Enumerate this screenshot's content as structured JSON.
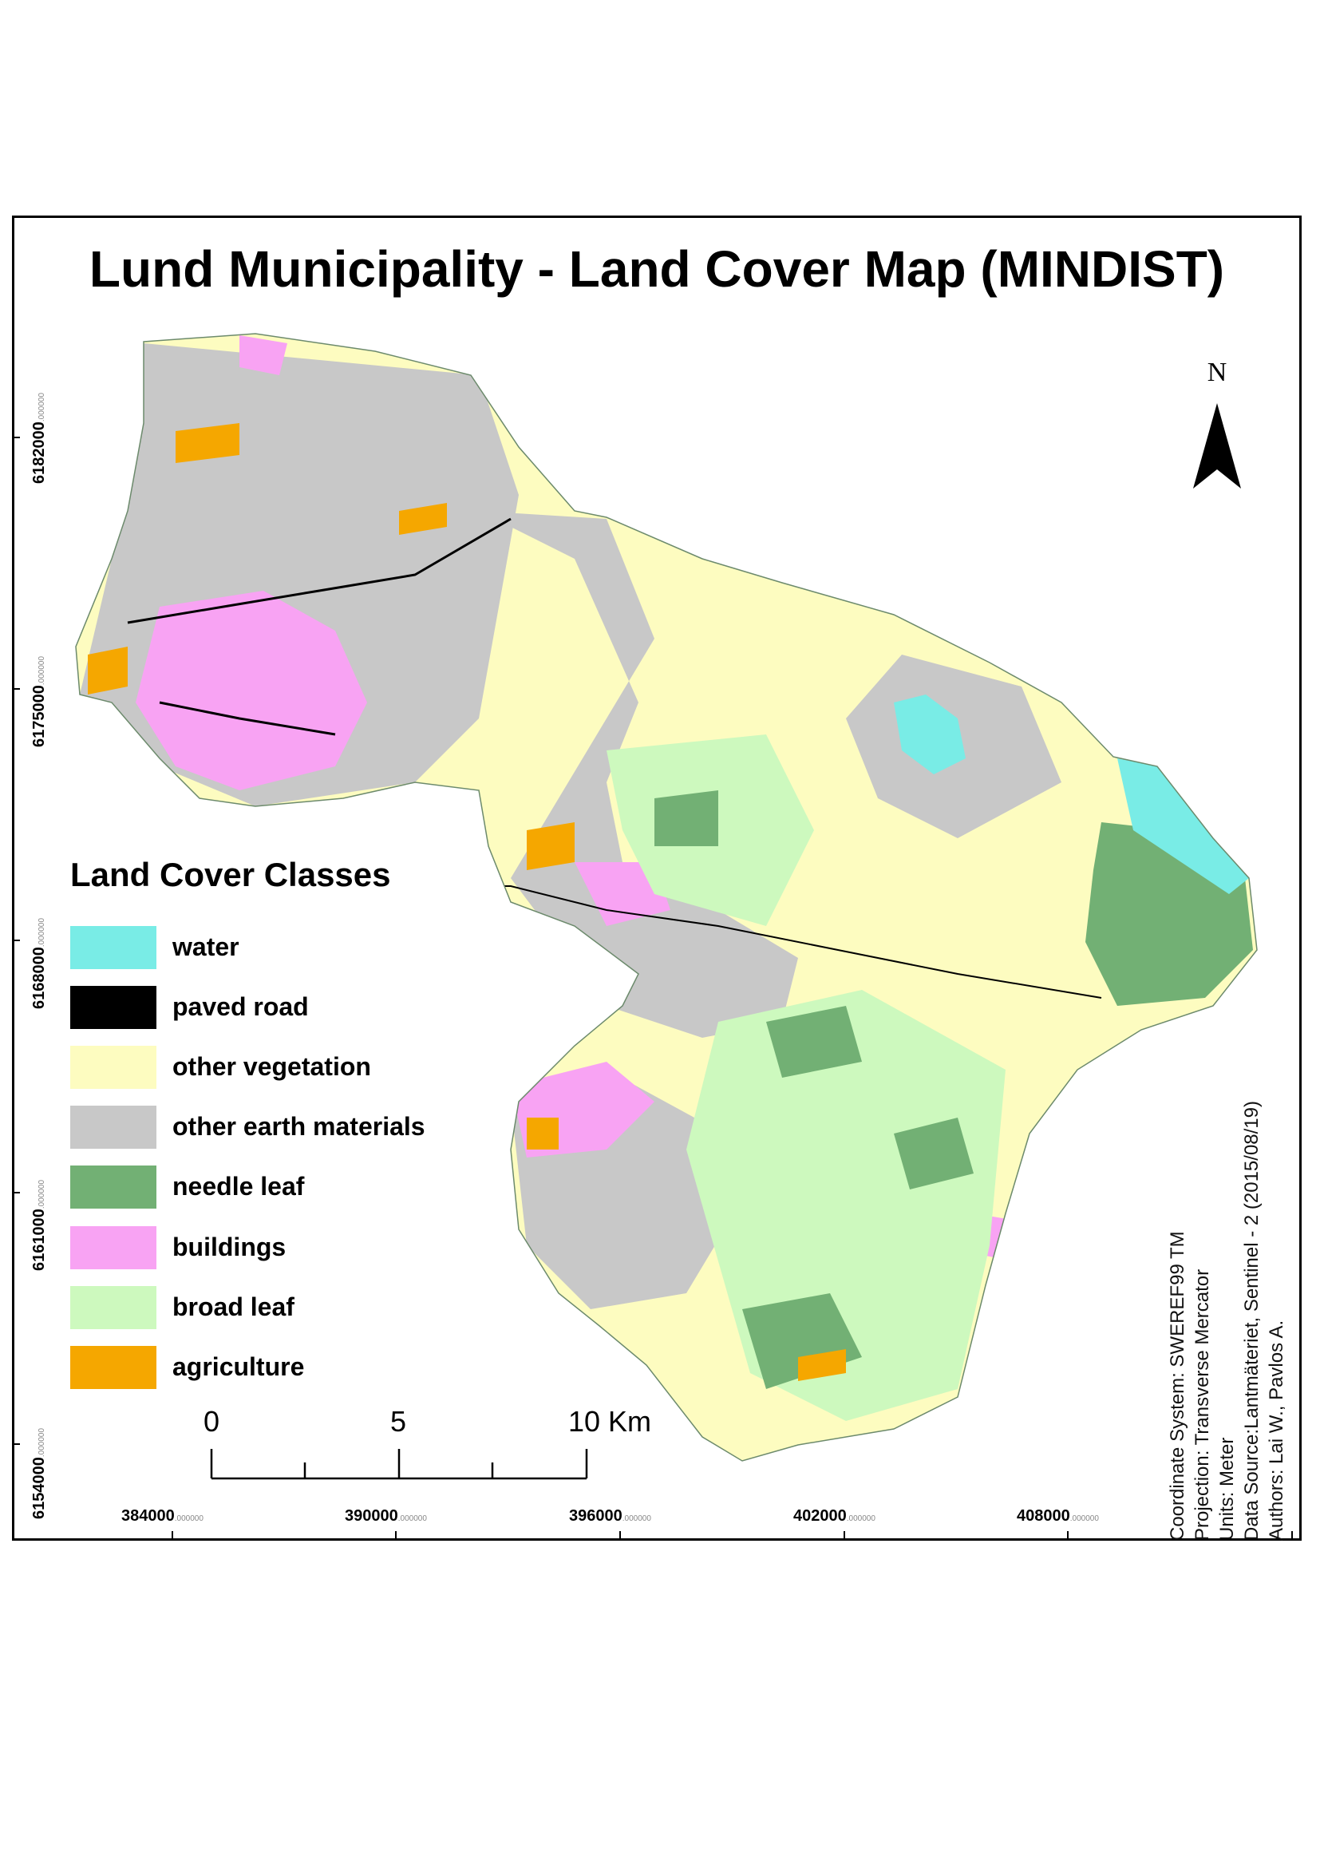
{
  "map": {
    "title": "Lund Municipality - Land Cover Map (MINDIST)",
    "north_label": "N"
  },
  "legend": {
    "title": "Land Cover Classes",
    "items": [
      {
        "label": "water",
        "color": "#79ece6"
      },
      {
        "label": "paved road",
        "color": "#000000"
      },
      {
        "label": "other vegetation",
        "color": "#fdfcc0"
      },
      {
        "label": "other earth materials",
        "color": "#c8c8c8"
      },
      {
        "label": "needle leaf",
        "color": "#72b074"
      },
      {
        "label": "buildings",
        "color": "#f8a3f3"
      },
      {
        "label": "broad leaf",
        "color": "#cdf9be"
      },
      {
        "label": "agriculture",
        "color": "#f5a700"
      }
    ]
  },
  "scale_bar": {
    "labels": [
      "0",
      "5",
      "10 Km"
    ]
  },
  "grid": {
    "y_ticks": [
      {
        "value": "6182000",
        "decimals": ".000000"
      },
      {
        "value": "6175000",
        "decimals": ".000000"
      },
      {
        "value": "6168000",
        "decimals": ".000000"
      },
      {
        "value": "6161000",
        "decimals": ".000000"
      },
      {
        "value": "6154000",
        "decimals": ".000000"
      }
    ],
    "x_ticks": [
      {
        "value": "384000",
        "decimals": ".000000"
      },
      {
        "value": "390000",
        "decimals": ".000000"
      },
      {
        "value": "396000",
        "decimals": ".000000"
      },
      {
        "value": "402000",
        "decimals": ".000000"
      },
      {
        "value": "408000",
        "decimals": ".000000"
      }
    ]
  },
  "metadata": [
    "Coordinate System: SWEREF99 TM",
    "Projection: Transverse Mercator",
    "Units: Meter",
    "Data Source:Lantmäteriet, Sentinel - 2 (2015/08/19)",
    "Authors: Lai W., Pavlos A."
  ]
}
